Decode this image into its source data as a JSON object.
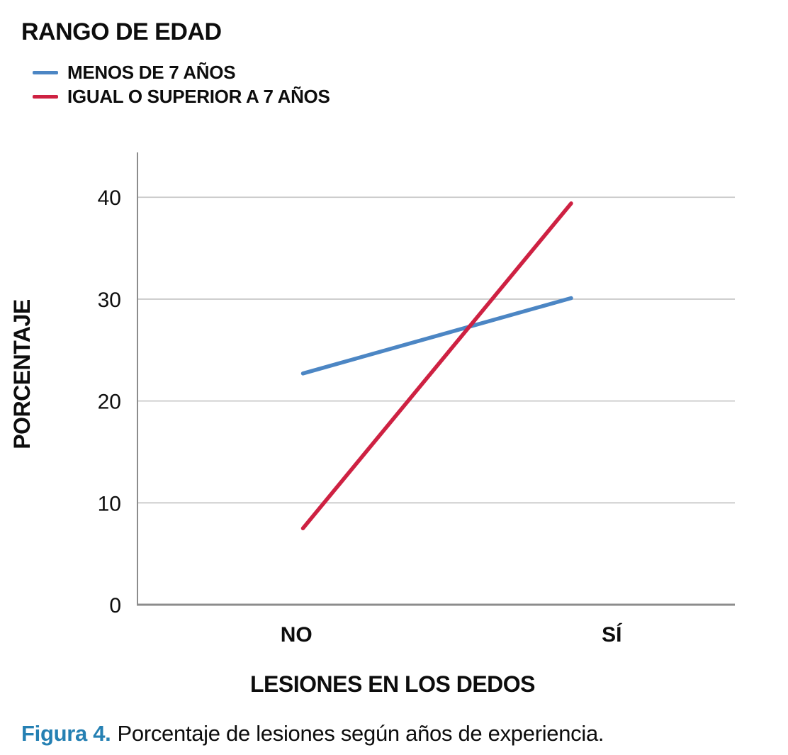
{
  "caption": {
    "label": "Figura 4.",
    "text": "Porcentaje de lesiones según años de experiencia.",
    "label_color": "#2580B3"
  },
  "chart_data": {
    "type": "line",
    "legend_title": "RANGO DE EDAD",
    "categories": [
      "NO",
      "SÍ"
    ],
    "series": [
      {
        "name": "MENOS DE 7 AÑOS",
        "color": "#4C86C4",
        "values": [
          22.7,
          30.1
        ]
      },
      {
        "name": "IGUAL O SUPERIOR A 7 AÑOS",
        "color": "#CE2142",
        "values": [
          7.5,
          39.4
        ]
      }
    ],
    "xlabel": "LESIONES EN LOS DEDOS",
    "ylabel": "PORCENTAJE",
    "ylim": [
      0,
      44.4
    ],
    "yticks": [
      0,
      10,
      20,
      30,
      40
    ],
    "grid": "horizontal",
    "legend_position": "top-left",
    "axis_color": "#8C8C8C",
    "grid_color": "#C9C9C9",
    "text_color": "#0d0d0d"
  }
}
